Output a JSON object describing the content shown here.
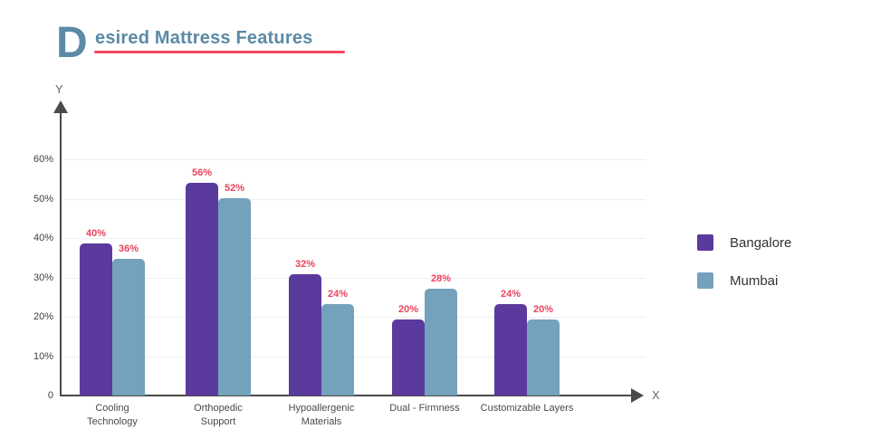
{
  "header": {
    "title_drop_cap": "D",
    "title_rest": "esired Mattress Features",
    "title_color": "#5a8aa6",
    "underline_color": "#f4465c"
  },
  "chart_data": {
    "type": "bar",
    "title": "Desired Mattress Features",
    "categories": [
      "Cooling Technology",
      "Orthopedic Support",
      "Hypoallergenic Materials",
      "Dual - Firmness",
      "Customizable Layers"
    ],
    "series": [
      {
        "name": "Bangalore",
        "color": "#5b3a9d",
        "values": [
          40,
          56,
          32,
          20,
          24
        ]
      },
      {
        "name": "Mumbai",
        "color": "#74a1bb",
        "values": [
          36,
          52,
          24,
          28,
          20
        ]
      }
    ],
    "value_suffix": "%",
    "value_label_color": "#e8435f",
    "y_ticks": [
      "0",
      "10%",
      "20%",
      "30%",
      "40%",
      "50%",
      "60%"
    ],
    "ylim": [
      0,
      70
    ],
    "xlabel": "X",
    "ylabel": "Y",
    "grid": true,
    "legend_position": "right"
  }
}
